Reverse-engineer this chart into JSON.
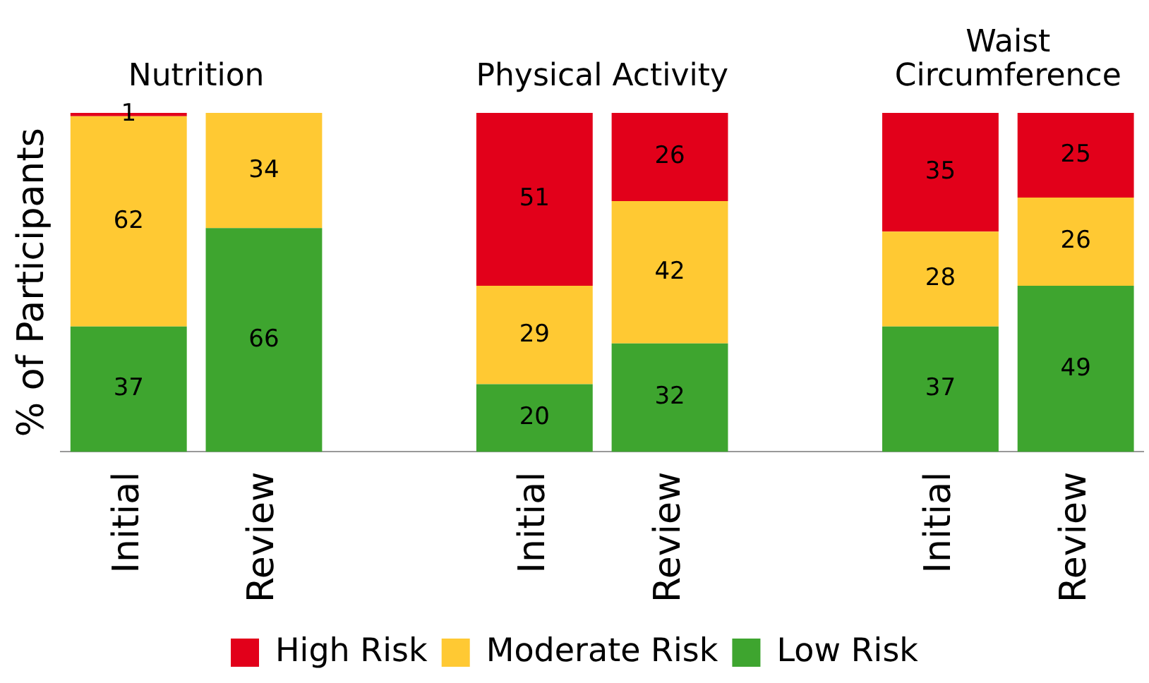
{
  "chart_data": {
    "type": "bar",
    "stacked": true,
    "ylabel": "% of Participants",
    "categories": [
      "Initial",
      "Review",
      null,
      "Initial",
      "Review",
      null,
      "Initial",
      "Review"
    ],
    "series": [
      {
        "name": "Low Risk",
        "color": "#3ea52f",
        "values": [
          37,
          66,
          null,
          20,
          32,
          null,
          37,
          49
        ]
      },
      {
        "name": "Moderate Risk",
        "color": "#ffc933",
        "values": [
          62,
          34,
          null,
          29,
          42,
          null,
          28,
          26
        ]
      },
      {
        "name": "High Risk",
        "color": "#e2001a",
        "values": [
          1,
          null,
          null,
          51,
          26,
          null,
          35,
          25
        ]
      }
    ],
    "ylim": [
      0,
      100
    ],
    "tick_labels": "x",
    "data_labels": true,
    "grid": false,
    "legend": "bottom",
    "annotations": [
      "Nutrition",
      "Physical Activity",
      "Waist Circumference"
    ]
  }
}
